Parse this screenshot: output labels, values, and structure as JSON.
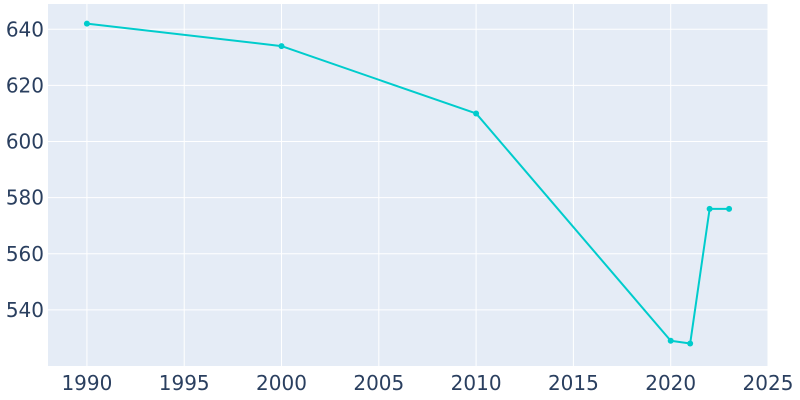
{
  "chart_data": {
    "type": "line",
    "title": "",
    "xlabel": "",
    "ylabel": "",
    "x": [
      1990,
      2000,
      2010,
      2020,
      2021,
      2022,
      2023
    ],
    "series": [
      {
        "values": [
          642,
          634,
          610,
          529,
          528,
          576,
          576
        ]
      }
    ],
    "xlim": [
      1988,
      2025
    ],
    "ylim": [
      520,
      649
    ],
    "xticks": [
      1990,
      1995,
      2000,
      2005,
      2010,
      2015,
      2020,
      2025
    ],
    "yticks": [
      540,
      560,
      580,
      600,
      620,
      640
    ],
    "xtick_labels": [
      "1990",
      "1995",
      "2000",
      "2005",
      "2010",
      "2015",
      "2020",
      "2025"
    ],
    "ytick_labels": [
      "540",
      "560",
      "580",
      "600",
      "620",
      "640"
    ],
    "grid": true,
    "legend": "none",
    "colors": {
      "background": "#e5ecf6",
      "grid": "#ffffff",
      "line": "#00cccc",
      "text": "#2a3f5f"
    }
  }
}
